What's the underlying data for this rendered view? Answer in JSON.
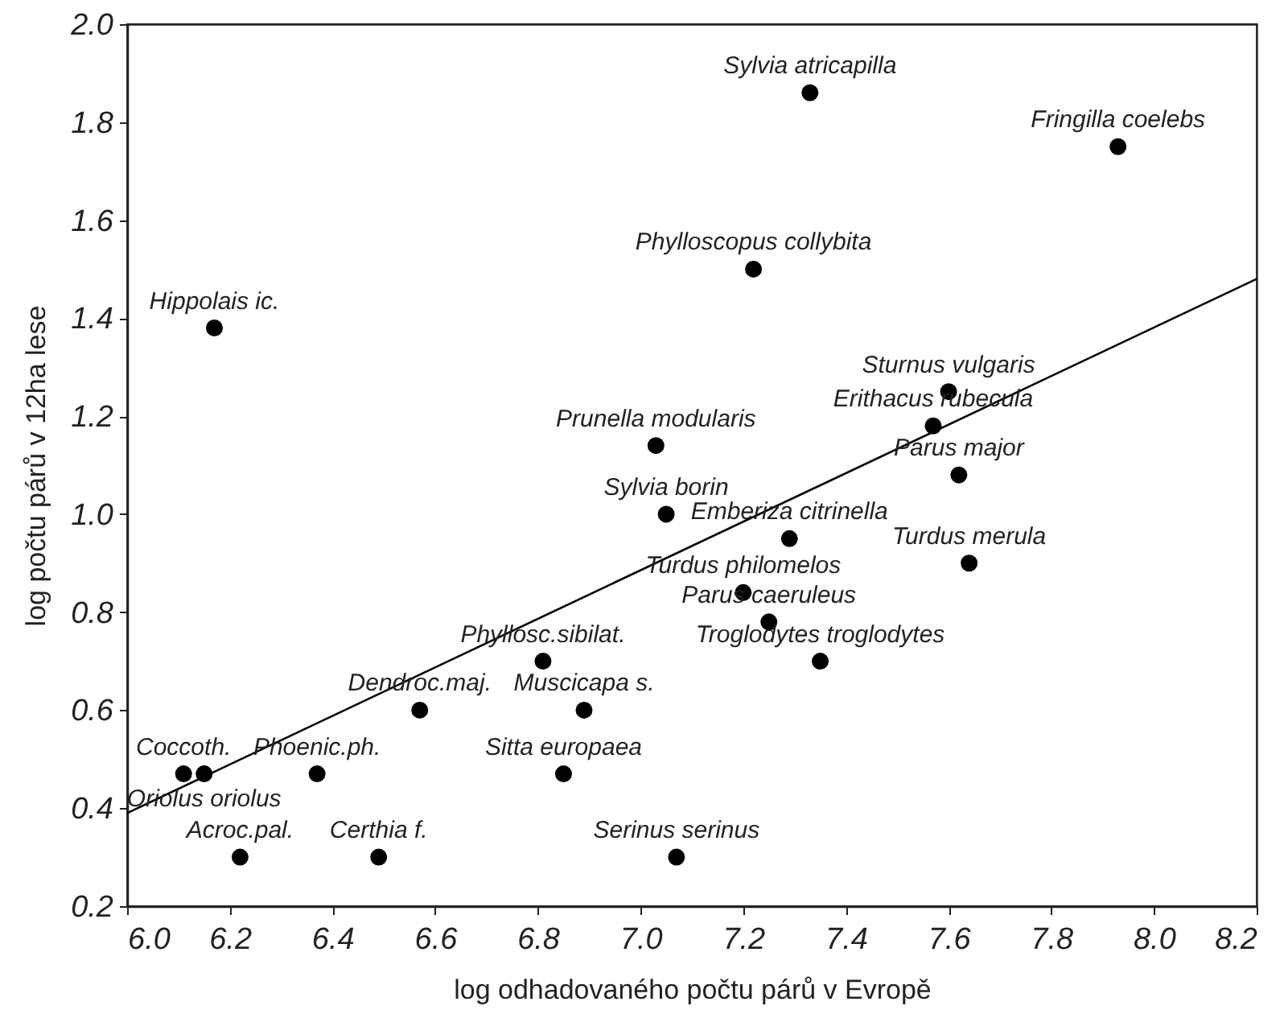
{
  "chart_data": {
    "type": "scatter",
    "xlabel": "log odhadovaného počtu párů v Evropě",
    "ylabel": "log počtu párů v 12ha lese",
    "xlim": [
      6.0,
      8.2
    ],
    "ylim": [
      0.2,
      2.0
    ],
    "xticks": [
      {
        "value": 6,
        "label": "6.0"
      },
      6.2,
      6.4,
      6.6,
      6.8,
      {
        "value": 7,
        "label": "7.0"
      },
      7.2,
      7.4,
      7.6,
      7.8,
      {
        "value": 8,
        "label": "8.0"
      },
      8.2
    ],
    "yticks": [
      0.2,
      0.4,
      0.6,
      0.8,
      {
        "value": 1,
        "label": "1.0"
      },
      1.2,
      1.4,
      1.6,
      1.8,
      {
        "value": 2,
        "label": "2.0"
      }
    ],
    "series": [
      {
        "color": "#000000",
        "marker": "circle",
        "x": [
          7.33,
          7.93,
          7.22,
          6.17,
          7.6,
          7.57,
          7.62,
          7.03,
          7.05,
          7.29,
          7.64,
          7.2,
          7.25,
          7.35,
          7.07,
          6.81,
          6.57,
          6.89,
          6.85,
          6.11,
          6.15,
          6.37,
          6.22,
          6.49
        ],
        "values": [
          1.86,
          1.75,
          1.5,
          1.38,
          1.25,
          1.18,
          1.08,
          1.14,
          1.0,
          0.95,
          0.9,
          0.84,
          0.78,
          0.7,
          0.3,
          0.7,
          0.6,
          0.6,
          0.47,
          0.47,
          0.47,
          0.47,
          0.3,
          0.3
        ]
      },
      {
        "type": "line",
        "color": "#000000",
        "x": [
          6.0,
          8.2
        ],
        "values": [
          0.39,
          1.48
        ]
      }
    ],
    "annotations": [
      {
        "text": "Sylvia atricapilla",
        "x": 7.33,
        "y": 1.86
      },
      {
        "text": "Fringilla coelebs",
        "x": 7.93,
        "y": 1.75
      },
      {
        "text": "Phylloscopus collybita",
        "x": 7.22,
        "y": 1.5
      },
      {
        "text": "Hippolais ic.",
        "x": 6.17,
        "y": 1.38
      },
      {
        "text": "Sturnus vulgaris",
        "x": 7.6,
        "y": 1.25
      },
      {
        "text": "Erithacus rubecula",
        "x": 7.57,
        "y": 1.18
      },
      {
        "text": "Parus major",
        "x": 7.62,
        "y": 1.08
      },
      {
        "text": "Prunella modularis",
        "x": 7.03,
        "y": 1.14
      },
      {
        "text": "Sylvia borin",
        "x": 7.05,
        "y": 1.0
      },
      {
        "text": "Emberiza citrinella",
        "x": 7.29,
        "y": 0.95
      },
      {
        "text": "Turdus merula",
        "x": 7.64,
        "y": 0.9
      },
      {
        "text": "Turdus philomelos",
        "x": 7.2,
        "y": 0.84
      },
      {
        "text": "Parus caeruleus",
        "x": 7.25,
        "y": 0.78
      },
      {
        "text": "Troglodytes troglodytes",
        "x": 7.35,
        "y": 0.7
      },
      {
        "text": "Serinus serinus",
        "x": 7.07,
        "y": 0.3
      },
      {
        "text": "Phyllosc.sibilat.",
        "x": 6.81,
        "y": 0.7
      },
      {
        "text": "Dendroc.maj.",
        "x": 6.57,
        "y": 0.6
      },
      {
        "text": "Muscicapa s.",
        "x": 6.89,
        "y": 0.6
      },
      {
        "text": "Sitta europaea",
        "x": 6.85,
        "y": 0.47
      },
      {
        "text": "Coccoth.",
        "x": 6.11,
        "y": 0.47
      },
      {
        "text": "Oriolus oriolus",
        "x": 6.15,
        "y": 0.47
      },
      {
        "text": "Phoenic.ph.",
        "x": 6.37,
        "y": 0.47
      },
      {
        "text": "Acroc.pal.",
        "x": 6.22,
        "y": 0.3
      },
      {
        "text": "Certhia f.",
        "x": 6.49,
        "y": 0.3
      }
    ]
  }
}
